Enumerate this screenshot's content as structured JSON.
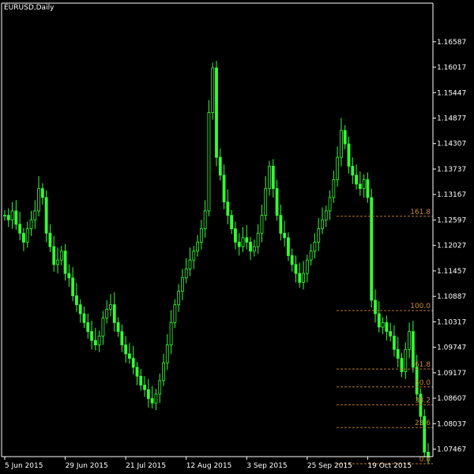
{
  "header": {
    "symbol_label": "EURUSD,Daily"
  },
  "colors": {
    "background": "#000000",
    "axis": "#ffffff",
    "candle": "#33ff33",
    "fib": "#b8762c"
  },
  "chart_data": {
    "type": "candlestick",
    "title": "EURUSD,Daily",
    "ylim": [
      1.073,
      1.1745
    ],
    "y_ticks": [
      "1.16587",
      "1.16017",
      "1.15447",
      "1.14877",
      "1.14307",
      "1.13737",
      "1.13167",
      "1.12597",
      "1.12027",
      "1.11457",
      "1.10887",
      "1.10317",
      "1.09747",
      "1.09177",
      "1.08607",
      "1.08037",
      "1.07467"
    ],
    "x_ticks": [
      "5 Jun 2015",
      "29 Jun 2015",
      "21 Jul 2015",
      "12 Aug 2015",
      "3 Sep 2015",
      "25 Sep 2015",
      "19 Oct 2015"
    ],
    "x_tick_index": [
      0,
      16,
      32,
      48,
      64,
      80,
      96
    ],
    "fib_levels": [
      {
        "label": "161.8",
        "price": 1.1268
      },
      {
        "label": "100.0",
        "price": 1.1057
      },
      {
        "label": "61.8",
        "price": 1.0926
      },
      {
        "label": "50.0",
        "price": 1.0886
      },
      {
        "label": "38.2",
        "price": 1.0846
      },
      {
        "label": "23.6",
        "price": 1.0795
      },
      {
        "label": "0.0",
        "price": 1.0714
      }
    ],
    "series_close_approx": [
      1.127,
      1.126,
      1.128,
      1.125,
      1.123,
      1.121,
      1.124,
      1.126,
      1.128,
      1.133,
      1.131,
      1.123,
      1.12,
      1.116,
      1.117,
      1.119,
      1.114,
      1.113,
      1.109,
      1.107,
      1.105,
      1.103,
      1.101,
      1.099,
      1.098,
      1.1,
      1.104,
      1.106,
      1.107,
      1.103,
      1.101,
      1.098,
      1.096,
      1.095,
      1.093,
      1.091,
      1.089,
      1.088,
      1.086,
      1.085,
      1.087,
      1.09,
      1.094,
      1.098,
      1.103,
      1.107,
      1.11,
      1.113,
      1.115,
      1.117,
      1.119,
      1.121,
      1.124,
      1.128,
      1.15,
      1.16,
      1.14,
      1.136,
      1.13,
      1.127,
      1.124,
      1.121,
      1.12,
      1.122,
      1.121,
      1.119,
      1.12,
      1.123,
      1.127,
      1.133,
      1.138,
      1.133,
      1.127,
      1.123,
      1.122,
      1.118,
      1.116,
      1.114,
      1.112,
      1.114,
      1.117,
      1.119,
      1.121,
      1.124,
      1.126,
      1.128,
      1.131,
      1.135,
      1.14,
      1.146,
      1.143,
      1.138,
      1.136,
      1.134,
      1.133,
      1.135,
      1.131,
      1.108,
      1.105,
      1.102,
      1.103,
      1.101,
      1.1,
      1.097,
      1.095,
      1.092,
      1.097,
      1.101,
      1.093,
      1.087,
      1.082,
      1.074,
      1.073
    ]
  }
}
